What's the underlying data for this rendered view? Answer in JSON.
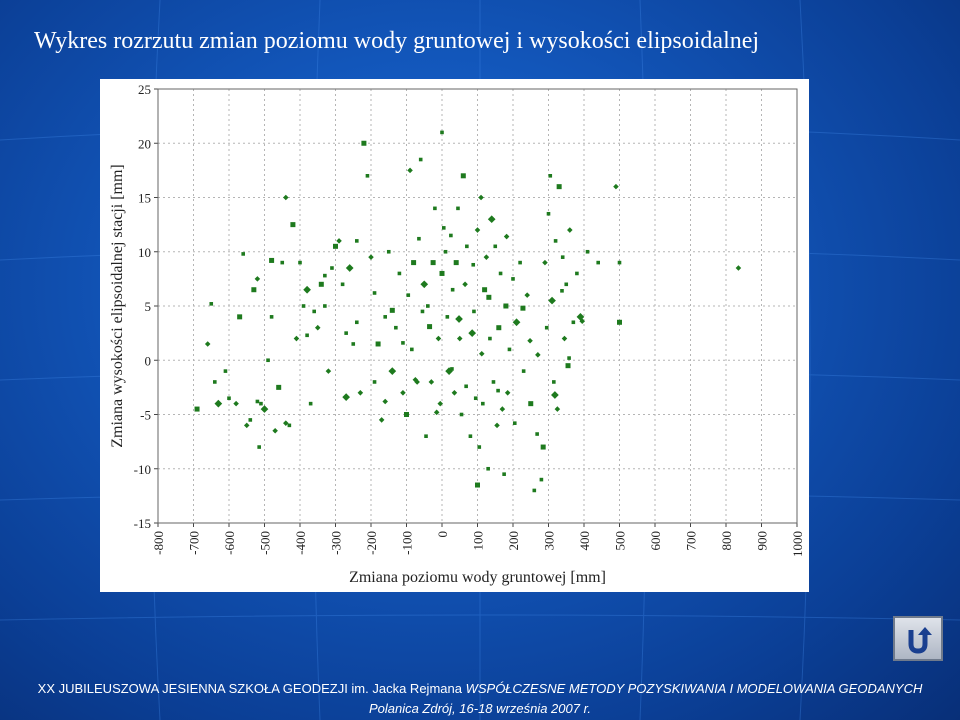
{
  "slide": {
    "title": "Wykres rozrzutu zmian poziomu wody gruntowej i wysokości elipsoidalnej",
    "footer_line1_prefix": "XX JUBILEUSZOWA JESIENNA SZKOŁA GEODEZJI im. Jacka Rejmana ",
    "footer_line1_italic": "WSPÓŁCZESNE METODY POZYSKIWANIA I MODELOWANIA GEODANYCH",
    "footer_line2": "Polanica Zdrój, 16-18 września 2007 r.",
    "nav_icon": "return-arrow-icon"
  },
  "colors": {
    "background": "#1358bd",
    "points": "#1e7a1e",
    "grid": "#b5b5b5"
  },
  "chart_data": {
    "type": "scatter",
    "title": "",
    "xlabel": "Zmiana poziomu wody gruntowej [mm]",
    "ylabel": "Zmiana wysokości elipsoidalnej stacji [mm]",
    "xlim": [
      -800,
      1000
    ],
    "ylim": [
      -15,
      25
    ],
    "x_ticks": [
      "-800",
      "-700",
      "-600",
      "-500",
      "-400",
      "-300",
      "-200",
      "-100",
      "0",
      "100",
      "200",
      "300",
      "400",
      "500",
      "600",
      "700",
      "800",
      "900",
      "1000"
    ],
    "y_ticks": [
      "-15",
      "-10",
      "-5",
      "0",
      "5",
      "10",
      "15",
      "20",
      "25"
    ],
    "grid": true,
    "series": [
      {
        "values": [
          [
            -690,
            -4.5
          ],
          [
            -660,
            1.5
          ],
          [
            -650,
            5.2
          ],
          [
            -640,
            -2
          ],
          [
            -630,
            -4
          ],
          [
            -610,
            -1
          ],
          [
            -600,
            -3.5
          ],
          [
            -580,
            -4
          ],
          [
            -570,
            4
          ],
          [
            -560,
            9.8
          ],
          [
            -550,
            -6
          ],
          [
            -540,
            -5.5
          ],
          [
            -530,
            6.5
          ],
          [
            -520,
            7.5
          ],
          [
            -515,
            -8
          ],
          [
            -510,
            -4
          ],
          [
            -500,
            -4.5
          ],
          [
            -490,
            0
          ],
          [
            -480,
            4
          ],
          [
            -470,
            -6.5
          ],
          [
            -460,
            -2.5
          ],
          [
            -450,
            9
          ],
          [
            -440,
            15
          ],
          [
            -430,
            -6
          ],
          [
            -420,
            12.5
          ],
          [
            -410,
            2
          ],
          [
            -400,
            9
          ],
          [
            -390,
            5
          ],
          [
            -380,
            6.5
          ],
          [
            -370,
            -4
          ],
          [
            -360,
            4.5
          ],
          [
            -350,
            3
          ],
          [
            -340,
            7
          ],
          [
            -330,
            5
          ],
          [
            -320,
            -1
          ],
          [
            -310,
            8.5
          ],
          [
            -300,
            10.5
          ],
          [
            -290,
            11
          ],
          [
            -280,
            7
          ],
          [
            -270,
            2.5
          ],
          [
            -260,
            8.5
          ],
          [
            -250,
            1.5
          ],
          [
            -240,
            3.5
          ],
          [
            -230,
            -3
          ],
          [
            -220,
            20
          ],
          [
            -210,
            17
          ],
          [
            -200,
            9.5
          ],
          [
            -190,
            -2
          ],
          [
            -180,
            1.5
          ],
          [
            -170,
            -5.5
          ],
          [
            -160,
            4
          ],
          [
            -150,
            10
          ],
          [
            -140,
            -1
          ],
          [
            -130,
            3
          ],
          [
            -120,
            8
          ],
          [
            -110,
            -3
          ],
          [
            -100,
            -5
          ],
          [
            -95,
            6
          ],
          [
            -90,
            17.5
          ],
          [
            -85,
            1
          ],
          [
            -80,
            9
          ],
          [
            -70,
            -2
          ],
          [
            -60,
            18.5
          ],
          [
            -55,
            4.5
          ],
          [
            -50,
            7
          ],
          [
            -45,
            -7
          ],
          [
            -40,
            5
          ],
          [
            -30,
            -2
          ],
          [
            -25,
            9
          ],
          [
            -20,
            14
          ],
          [
            -10,
            2
          ],
          [
            0,
            21
          ],
          [
            0,
            8
          ],
          [
            -5,
            -4
          ],
          [
            10,
            10
          ],
          [
            15,
            4
          ],
          [
            20,
            -1
          ],
          [
            25,
            11.5
          ],
          [
            30,
            6.5
          ],
          [
            35,
            -3
          ],
          [
            40,
            9
          ],
          [
            45,
            14
          ],
          [
            50,
            2
          ],
          [
            55,
            -5
          ],
          [
            60,
            17
          ],
          [
            65,
            7
          ],
          [
            70,
            10.5
          ],
          [
            80,
            -7
          ],
          [
            85,
            2.5
          ],
          [
            90,
            4.5
          ],
          [
            95,
            -3.5
          ],
          [
            100,
            12
          ],
          [
            100,
            -11.5
          ],
          [
            105,
            -8
          ],
          [
            110,
            15
          ],
          [
            115,
            -4
          ],
          [
            120,
            6.5
          ],
          [
            125,
            9.5
          ],
          [
            130,
            -10
          ],
          [
            135,
            2
          ],
          [
            140,
            13
          ],
          [
            145,
            -2
          ],
          [
            150,
            10.5
          ],
          [
            155,
            -6
          ],
          [
            160,
            3
          ],
          [
            165,
            8
          ],
          [
            170,
            -4.5
          ],
          [
            175,
            -10.5
          ],
          [
            180,
            5
          ],
          [
            185,
            -3
          ],
          [
            190,
            1
          ],
          [
            200,
            7.5
          ],
          [
            210,
            3.5
          ],
          [
            220,
            9
          ],
          [
            230,
            -1
          ],
          [
            240,
            6
          ],
          [
            250,
            -4
          ],
          [
            260,
            -12
          ],
          [
            270,
            0.5
          ],
          [
            280,
            -11
          ],
          [
            285,
            -8
          ],
          [
            290,
            9
          ],
          [
            300,
            13.5
          ],
          [
            305,
            17
          ],
          [
            310,
            5.5
          ],
          [
            315,
            -2
          ],
          [
            320,
            11
          ],
          [
            325,
            -4.5
          ],
          [
            330,
            16
          ],
          [
            340,
            9.5
          ],
          [
            345,
            2
          ],
          [
            350,
            7
          ],
          [
            355,
            -0.5
          ],
          [
            360,
            12
          ],
          [
            370,
            3.5
          ],
          [
            380,
            8
          ],
          [
            390,
            4
          ],
          [
            410,
            10
          ],
          [
            440,
            9
          ],
          [
            490,
            16
          ],
          [
            500,
            3.5
          ],
          [
            500,
            9
          ],
          [
            835,
            8.5
          ],
          [
            -520,
            -3.8
          ],
          [
            -480,
            9.2
          ],
          [
            -440,
            -5.8
          ],
          [
            -380,
            2.3
          ],
          [
            -330,
            7.8
          ],
          [
            -270,
            -3.4
          ],
          [
            -240,
            11
          ],
          [
            -190,
            6.2
          ],
          [
            -160,
            -3.8
          ],
          [
            -140,
            4.6
          ],
          [
            -110,
            1.6
          ],
          [
            -75,
            -1.8
          ],
          [
            -65,
            11.2
          ],
          [
            -35,
            3.1
          ],
          [
            -15,
            -4.8
          ],
          [
            5,
            12.2
          ],
          [
            28,
            -0.8
          ],
          [
            48,
            3.8
          ],
          [
            68,
            -2.4
          ],
          [
            88,
            8.8
          ],
          [
            112,
            0.6
          ],
          [
            132,
            5.8
          ],
          [
            158,
            -2.8
          ],
          [
            182,
            11.4
          ],
          [
            205,
            -5.8
          ],
          [
            228,
            4.8
          ],
          [
            248,
            1.8
          ],
          [
            268,
            -6.8
          ],
          [
            295,
            3
          ],
          [
            318,
            -3.2
          ],
          [
            338,
            6.4
          ],
          [
            358,
            0.2
          ],
          [
            395,
            3.6
          ]
        ]
      }
    ]
  }
}
